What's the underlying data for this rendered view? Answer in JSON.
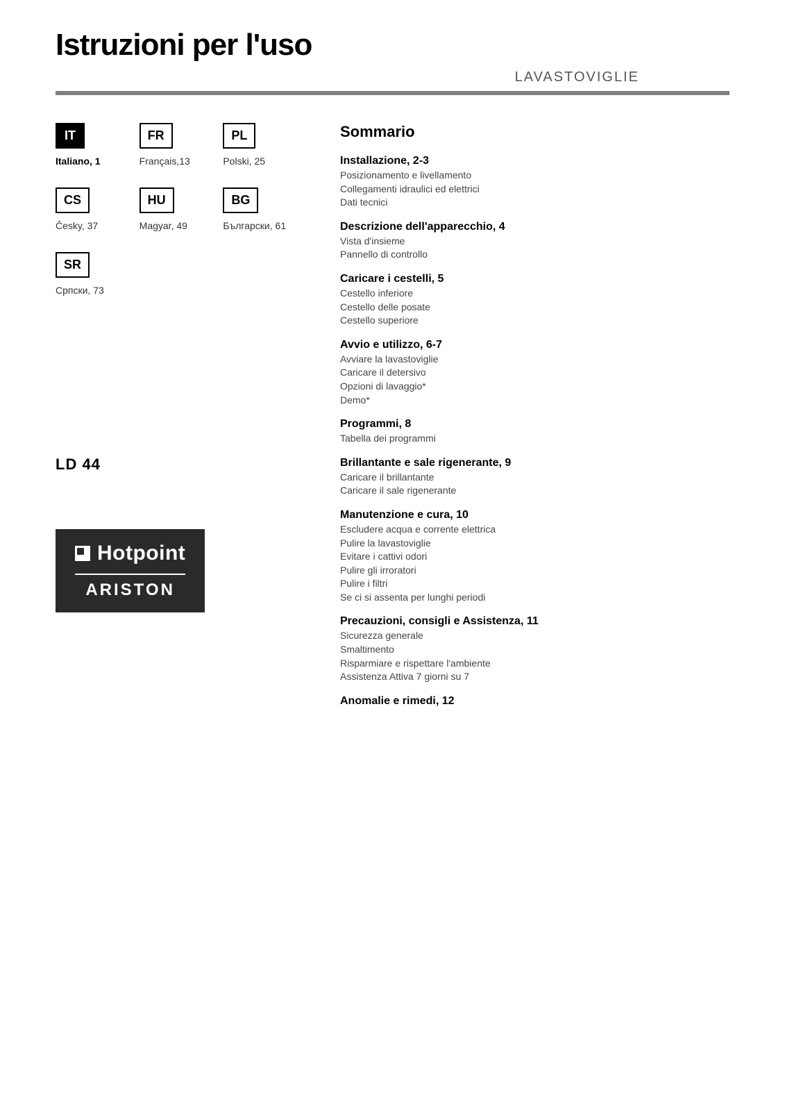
{
  "header": {
    "title": "Istruzioni per l'uso",
    "subtitle": "LAVASTOVIGLIE"
  },
  "languages": [
    {
      "code": "IT",
      "label": "Italiano, 1",
      "active": true
    },
    {
      "code": "FR",
      "label": "Français,13",
      "active": false
    },
    {
      "code": "PL",
      "label": "Polski, 25",
      "active": false
    },
    {
      "code": "CS",
      "label": "Česky, 37",
      "active": false
    },
    {
      "code": "HU",
      "label": "Magyar, 49",
      "active": false
    },
    {
      "code": "BG",
      "label": "Български, 61",
      "active": false
    },
    {
      "code": "SR",
      "label": "Српски, 73",
      "active": false
    }
  ],
  "model": "LD 44",
  "toc": {
    "title": "Sommario",
    "sections": [
      {
        "heading": "Installazione, 2-3",
        "items": [
          "Posizionamento e livellamento",
          "Collegamenti idraulici ed elettrici",
          "Dati tecnici"
        ]
      },
      {
        "heading": "Descrizione dell'apparecchio, 4",
        "items": [
          "Vista d'insieme",
          "Pannello di controllo"
        ]
      },
      {
        "heading": "Caricare i cestelli, 5",
        "items": [
          "Cestello inferiore",
          "Cestello delle posate",
          "Cestello superiore"
        ]
      },
      {
        "heading": "Avvio e utilizzo, 6-7",
        "items": [
          "Avviare la lavastoviglie",
          "Caricare il detersivo",
          "Opzioni di lavaggio*",
          "Demo*"
        ]
      },
      {
        "heading": "Programmi, 8",
        "items": [
          "Tabella dei programmi"
        ]
      },
      {
        "heading": "Brillantante e sale rigenerante, 9",
        "items": [
          "Caricare il brillantante",
          "Caricare il sale rigenerante"
        ]
      },
      {
        "heading": "Manutenzione e cura, 10",
        "items": [
          "Escludere acqua e corrente elettrica",
          "Pulire la lavastoviglie",
          "Evitare i cattivi odori",
          "Pulire gli irroratori",
          "Pulire i filtri",
          "Se ci si assenta per lunghi periodi"
        ]
      },
      {
        "heading": "Precauzioni, consigli e Assistenza, 11",
        "items": [
          "Sicurezza generale",
          "Smaltimento",
          "Risparmiare e rispettare l'ambiente",
          "Assistenza Attiva 7 giorni su 7"
        ]
      },
      {
        "heading": "Anomalie e rimedi, 12",
        "items": []
      }
    ]
  },
  "logo": {
    "brand1": "Hotpoint",
    "brand2": "ARISTON"
  },
  "colors": {
    "divider": "#808080",
    "text": "#000000",
    "subtext": "#444444",
    "logo_bg": "#2a2a2a"
  }
}
